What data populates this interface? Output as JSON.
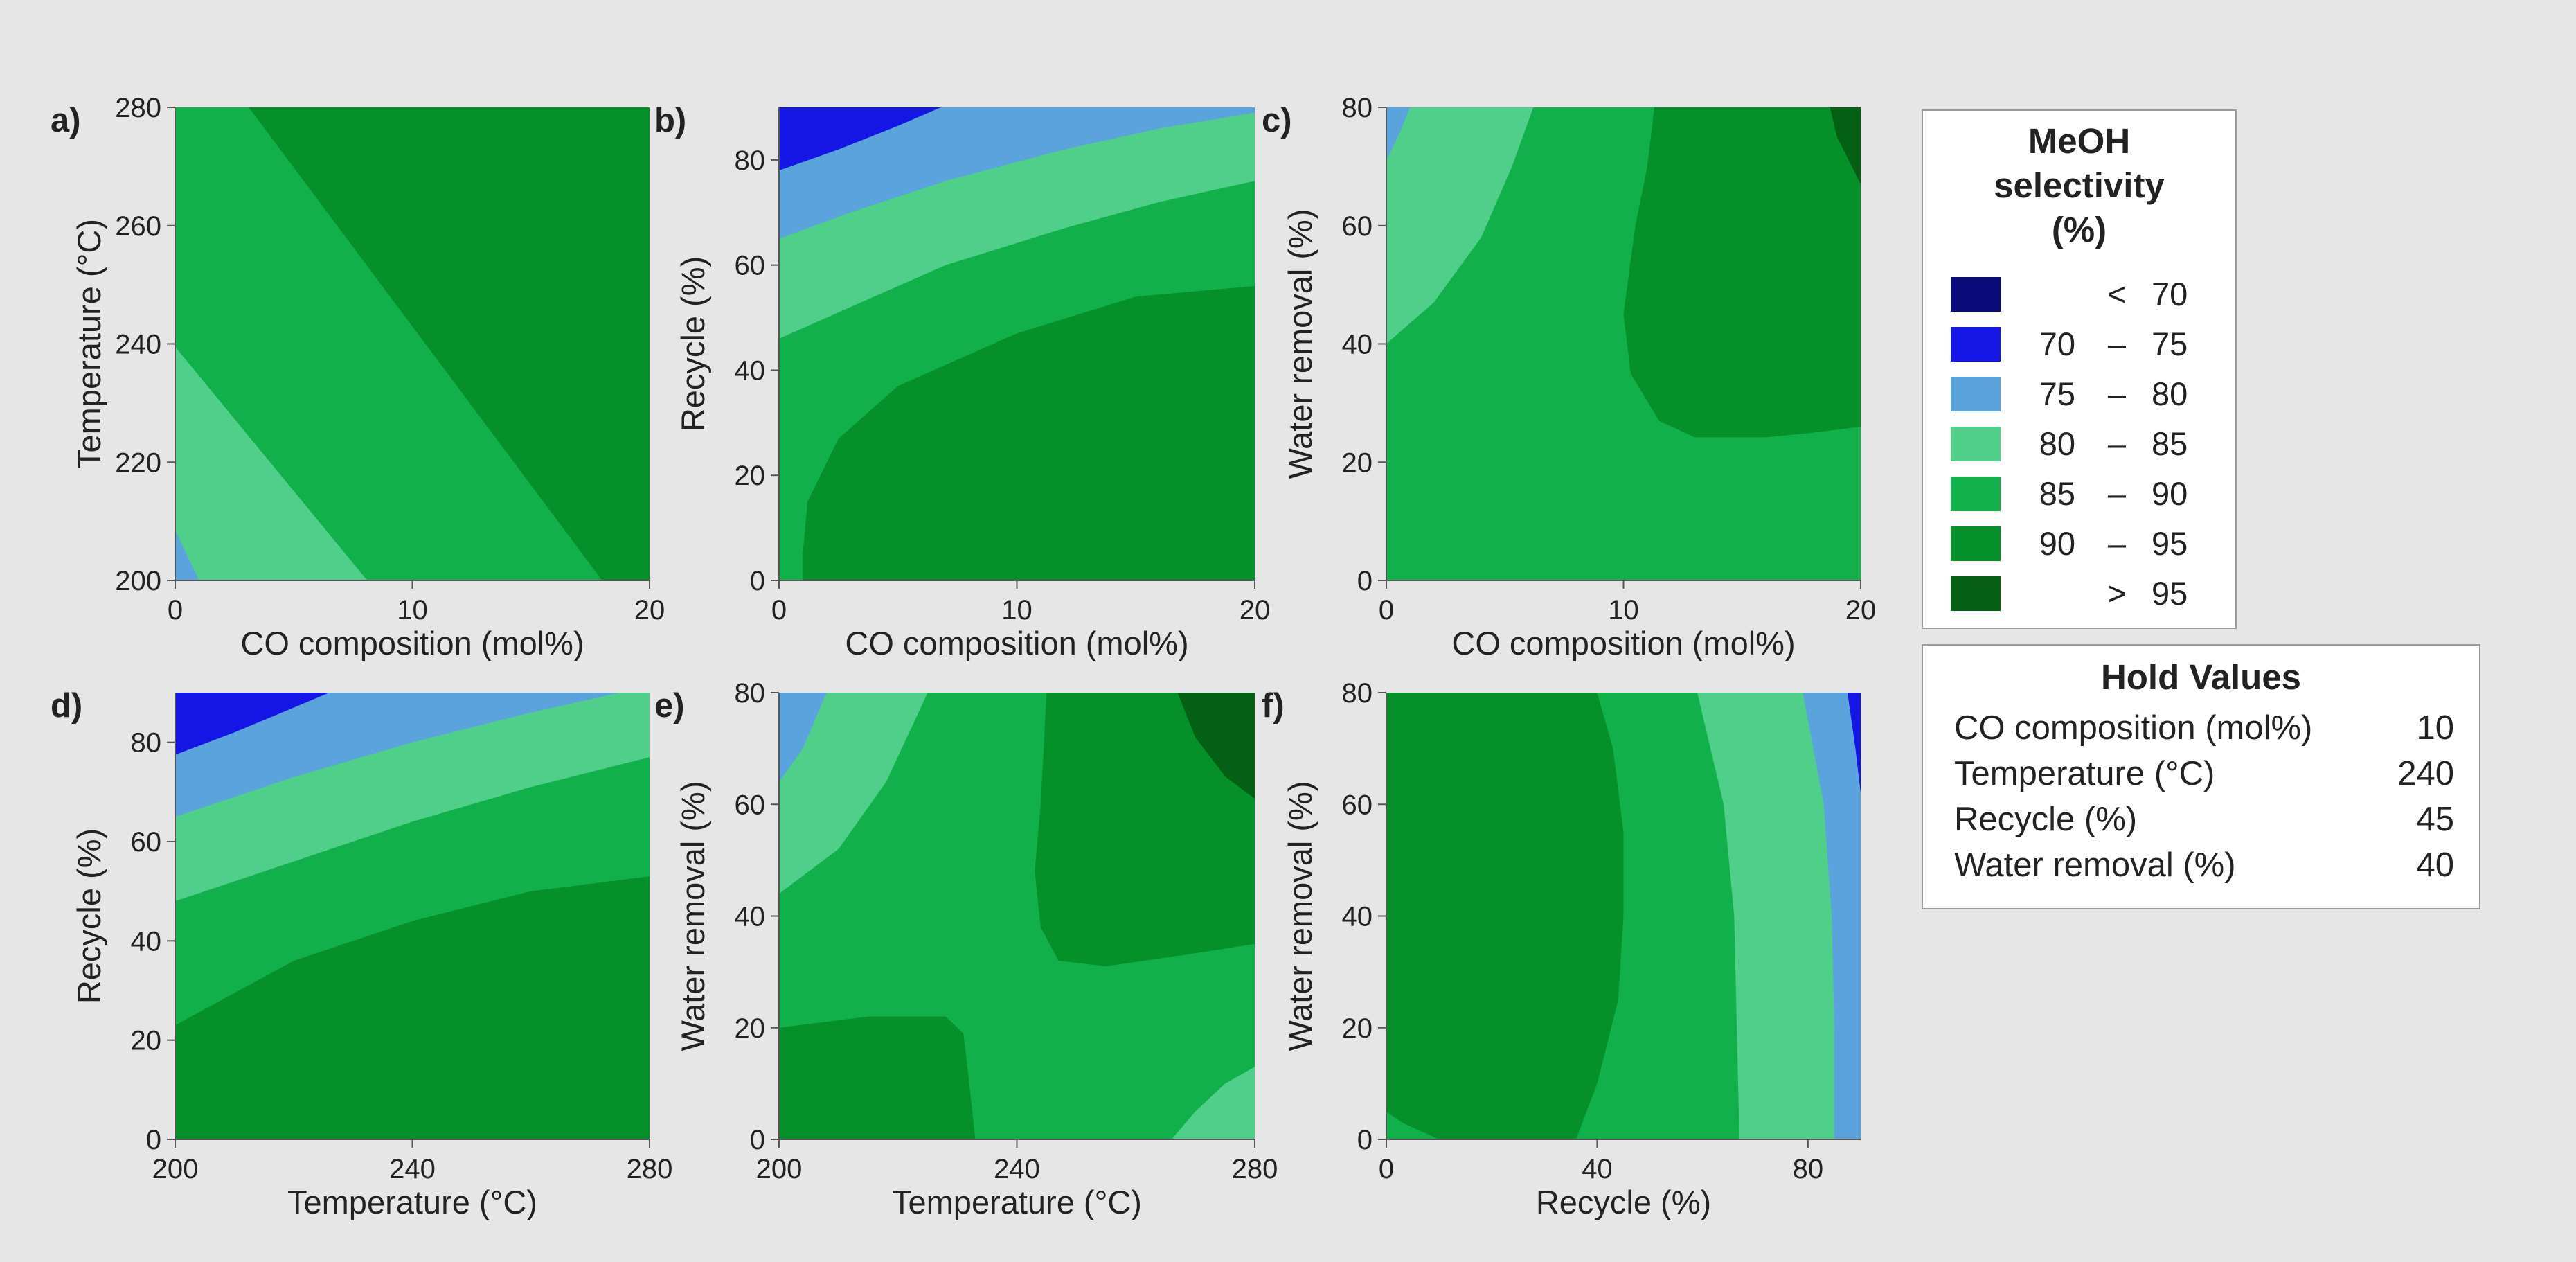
{
  "colors": {
    "background": "#e6e6e6",
    "bands": [
      "#0a0a7a",
      "#1515e6",
      "#5ba3dd",
      "#4fcf8a",
      "#12b04a",
      "#06902a",
      "#046014"
    ]
  },
  "legend": {
    "title_lines": [
      "MeOH",
      "selectivity",
      "(%)"
    ],
    "entries": [
      {
        "lo": "",
        "sep": "<",
        "hi": "70"
      },
      {
        "lo": "70",
        "sep": "–",
        "hi": "75"
      },
      {
        "lo": "75",
        "sep": "–",
        "hi": "80"
      },
      {
        "lo": "80",
        "sep": "–",
        "hi": "85"
      },
      {
        "lo": "85",
        "sep": "–",
        "hi": "90"
      },
      {
        "lo": "90",
        "sep": "–",
        "hi": "95"
      },
      {
        "lo": "",
        "sep": ">",
        "hi": "95"
      }
    ]
  },
  "hold_values": {
    "title": "Hold Values",
    "rows": [
      {
        "label": "CO composition (mol%)",
        "value": "10"
      },
      {
        "label": "Temperature (°C)",
        "value": "240"
      },
      {
        "label": "Recycle (%)",
        "value": "45"
      },
      {
        "label": "Water removal (%)",
        "value": "40"
      }
    ]
  },
  "chart_data": [
    {
      "type": "contour",
      "panel": "a)",
      "xlabel": "CO composition (mol%)",
      "ylabel": "Temperature (°C)",
      "xlim": [
        0,
        20
      ],
      "ylim": [
        200,
        280
      ],
      "xticks": [
        0,
        10,
        20
      ],
      "yticks": [
        200,
        220,
        240,
        260,
        280
      ],
      "fill_levels": [
        {
          "level": 4,
          "polygon": [
            [
              0,
              200
            ],
            [
              20,
              200
            ],
            [
              20,
              280
            ],
            [
              0,
              280
            ]
          ]
        },
        {
          "level": 3,
          "polygon": [
            [
              0,
              200
            ],
            [
              8.1,
              200
            ],
            [
              0,
              239.5
            ]
          ]
        },
        {
          "level": 2,
          "polygon": [
            [
              0,
              200
            ],
            [
              1,
              200
            ],
            [
              0,
              208.5
            ]
          ]
        },
        {
          "level": 5,
          "polygon": [
            [
              3.1,
              280
            ],
            [
              20,
              280
            ],
            [
              20,
              200
            ],
            [
              18,
              200
            ]
          ]
        }
      ]
    },
    {
      "type": "contour",
      "panel": "b)",
      "xlabel": "CO composition (mol%)",
      "ylabel": "Recycle (%)",
      "xlim": [
        0,
        20
      ],
      "ylim": [
        0,
        90
      ],
      "xticks": [
        0,
        10,
        20
      ],
      "yticks": [
        0,
        20,
        40,
        60,
        80
      ],
      "fill_levels": [
        {
          "level": 4,
          "polygon": [
            [
              0,
              0
            ],
            [
              20,
              0
            ],
            [
              20,
              90
            ],
            [
              0,
              90
            ]
          ]
        },
        {
          "level": 3,
          "polygon": [
            [
              0,
              90
            ],
            [
              0,
              46
            ],
            [
              3,
              52
            ],
            [
              7,
              60
            ],
            [
              12,
              67
            ],
            [
              16,
              72
            ],
            [
              20,
              76
            ],
            [
              20,
              90
            ]
          ]
        },
        {
          "level": 2,
          "polygon": [
            [
              0,
              90
            ],
            [
              0,
              65
            ],
            [
              3,
              70
            ],
            [
              7,
              76
            ],
            [
              12,
              82
            ],
            [
              16,
              86
            ],
            [
              20,
              89
            ],
            [
              20,
              90
            ]
          ]
        },
        {
          "level": 1,
          "polygon": [
            [
              0,
              90
            ],
            [
              0,
              78
            ],
            [
              2.5,
              82
            ],
            [
              5,
              86.5
            ],
            [
              6.8,
              90
            ]
          ]
        },
        {
          "level": 5,
          "polygon": [
            [
              1,
              0
            ],
            [
              20,
              0
            ],
            [
              20,
              56
            ],
            [
              15,
              54
            ],
            [
              10,
              47
            ],
            [
              5,
              37
            ],
            [
              2.5,
              27
            ],
            [
              1.2,
              15
            ],
            [
              1,
              5
            ]
          ]
        }
      ]
    },
    {
      "type": "contour",
      "panel": "c)",
      "xlabel": "CO composition (mol%)",
      "ylabel": "Water removal (%)",
      "xlim": [
        0,
        20
      ],
      "ylim": [
        0,
        80
      ],
      "xticks": [
        0,
        10,
        20
      ],
      "yticks": [
        0,
        20,
        40,
        60,
        80
      ],
      "fill_levels": [
        {
          "level": 4,
          "polygon": [
            [
              0,
              0
            ],
            [
              20,
              0
            ],
            [
              20,
              80
            ],
            [
              0,
              80
            ]
          ]
        },
        {
          "level": 3,
          "polygon": [
            [
              0,
              80
            ],
            [
              0,
              40
            ],
            [
              2,
              47
            ],
            [
              4,
              58
            ],
            [
              5.3,
              70
            ],
            [
              6.2,
              80
            ]
          ]
        },
        {
          "level": 2,
          "polygon": [
            [
              0,
              80
            ],
            [
              0,
              71
            ],
            [
              0.6,
              76
            ],
            [
              1,
              80
            ]
          ]
        },
        {
          "level": 5,
          "polygon": [
            [
              11.3,
              80
            ],
            [
              20,
              80
            ],
            [
              20,
              26
            ],
            [
              18,
              25
            ],
            [
              16,
              24.2
            ],
            [
              13,
              24.2
            ],
            [
              11.5,
              27
            ],
            [
              10.3,
              35
            ],
            [
              10,
              45
            ],
            [
              10.5,
              60
            ],
            [
              11,
              70
            ]
          ]
        },
        {
          "level": 6,
          "polygon": [
            [
              18.7,
              80
            ],
            [
              20,
              80
            ],
            [
              20,
              67
            ],
            [
              19.5,
              71
            ],
            [
              19,
              75
            ]
          ]
        }
      ]
    },
    {
      "type": "contour",
      "panel": "d)",
      "xlabel": "Temperature (°C)",
      "ylabel": "Recycle (%)",
      "xlim": [
        200,
        280
      ],
      "ylim": [
        0,
        90
      ],
      "xticks": [
        200,
        240,
        280
      ],
      "yticks": [
        0,
        20,
        40,
        60,
        80
      ],
      "fill_levels": [
        {
          "level": 4,
          "polygon": [
            [
              200,
              0
            ],
            [
              280,
              0
            ],
            [
              280,
              90
            ],
            [
              200,
              90
            ]
          ]
        },
        {
          "level": 3,
          "polygon": [
            [
              200,
              90
            ],
            [
              200,
              48
            ],
            [
              220,
              56
            ],
            [
              240,
              64
            ],
            [
              260,
              71
            ],
            [
              280,
              77
            ],
            [
              280,
              90
            ]
          ]
        },
        {
          "level": 2,
          "polygon": [
            [
              200,
              90
            ],
            [
              200,
              65
            ],
            [
              220,
              73
            ],
            [
              240,
              80
            ],
            [
              260,
              86
            ],
            [
              275,
              90
            ]
          ]
        },
        {
          "level": 1,
          "polygon": [
            [
              200,
              90
            ],
            [
              200,
              77.5
            ],
            [
              210,
              82
            ],
            [
              220,
              87
            ],
            [
              226,
              90
            ]
          ]
        },
        {
          "level": 5,
          "polygon": [
            [
              200,
              0
            ],
            [
              280,
              0
            ],
            [
              280,
              53
            ],
            [
              260,
              50
            ],
            [
              240,
              44
            ],
            [
              220,
              36
            ],
            [
              200,
              23
            ]
          ]
        }
      ]
    },
    {
      "type": "contour",
      "panel": "e)",
      "xlabel": "Temperature (°C)",
      "ylabel": "Water removal (%)",
      "xlim": [
        200,
        280
      ],
      "ylim": [
        0,
        80
      ],
      "xticks": [
        200,
        240,
        280
      ],
      "yticks": [
        0,
        20,
        40,
        60,
        80
      ],
      "fill_levels": [
        {
          "level": 4,
          "polygon": [
            [
              200,
              0
            ],
            [
              280,
              0
            ],
            [
              280,
              80
            ],
            [
              200,
              80
            ]
          ]
        },
        {
          "level": 3,
          "polygon": [
            [
              200,
              80
            ],
            [
              200,
              44
            ],
            [
              210,
              52
            ],
            [
              218,
              64
            ],
            [
              225,
              80
            ]
          ]
        },
        {
          "level": 2,
          "polygon": [
            [
              200,
              80
            ],
            [
              200,
              64
            ],
            [
              204,
              70
            ],
            [
              208,
              80
            ]
          ]
        },
        {
          "level": 5,
          "polygon": [
            [
              245,
              80
            ],
            [
              280,
              80
            ],
            [
              280,
              35
            ],
            [
              268,
              33
            ],
            [
              255,
              31
            ],
            [
              247,
              32
            ],
            [
              244,
              38
            ],
            [
              243,
              48
            ],
            [
              244,
              60
            ],
            [
              244.5,
              70
            ]
          ]
        },
        {
          "level": 6,
          "polygon": [
            [
              267,
              80
            ],
            [
              280,
              80
            ],
            [
              280,
              61
            ],
            [
              275,
              65
            ],
            [
              270,
              72
            ]
          ]
        },
        {
          "level": 5,
          "polygon": [
            [
              200,
              0
            ],
            [
              233,
              0
            ],
            [
              232,
              10
            ],
            [
              231,
              19
            ],
            [
              228,
              22
            ],
            [
              215,
              22
            ],
            [
              200,
              20
            ]
          ]
        },
        {
          "level": 3,
          "polygon": [
            [
              266,
              0
            ],
            [
              280,
              0
            ],
            [
              280,
              13
            ],
            [
              275,
              10
            ],
            [
              270,
              5
            ]
          ]
        }
      ]
    },
    {
      "type": "contour",
      "panel": "f)",
      "xlabel": "Recycle (%)",
      "ylabel": "Water removal (%)",
      "xlim": [
        0,
        90
      ],
      "ylim": [
        0,
        80
      ],
      "xticks": [
        0,
        40,
        80
      ],
      "yticks": [
        0,
        20,
        40,
        60,
        80
      ],
      "fill_levels": [
        {
          "level": 4,
          "polygon": [
            [
              0,
              0
            ],
            [
              90,
              0
            ],
            [
              90,
              80
            ],
            [
              0,
              80
            ]
          ]
        },
        {
          "level": 5,
          "polygon": [
            [
              0,
              80
            ],
            [
              40,
              80
            ],
            [
              43,
              70
            ],
            [
              45,
              55
            ],
            [
              45,
              40
            ],
            [
              44,
              25
            ],
            [
              40,
              10
            ],
            [
              36,
              0
            ],
            [
              10,
              0
            ],
            [
              3,
              3
            ],
            [
              0,
              5
            ]
          ]
        },
        {
          "level": 3,
          "polygon": [
            [
              59,
              80
            ],
            [
              90,
              80
            ],
            [
              90,
              0
            ],
            [
              67,
              0
            ],
            [
              66.5,
              20
            ],
            [
              66,
              40
            ],
            [
              64,
              60
            ]
          ]
        },
        {
          "level": 2,
          "polygon": [
            [
              79,
              80
            ],
            [
              90,
              80
            ],
            [
              90,
              0
            ],
            [
              85,
              0
            ],
            [
              85,
              20
            ],
            [
              84.5,
              40
            ],
            [
              83,
              60
            ]
          ]
        },
        {
          "level": 1,
          "polygon": [
            [
              87.5,
              80
            ],
            [
              90,
              80
            ],
            [
              90,
              62
            ],
            [
              89,
              70
            ]
          ]
        }
      ]
    }
  ]
}
